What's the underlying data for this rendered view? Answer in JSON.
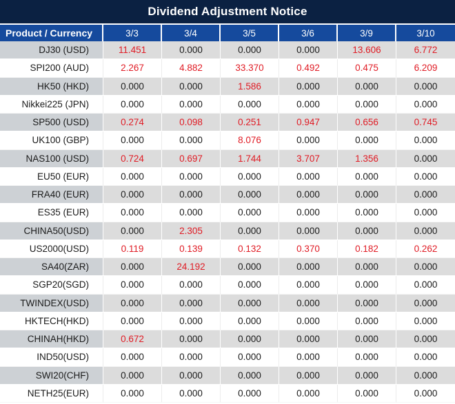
{
  "title": "Dividend Adjustment Notice",
  "colors": {
    "title_bg": "#0b2142",
    "header_bg": "#154a9d",
    "label_column_gray": "#cdd1d5",
    "row_gray": "#dcdcdc",
    "nonzero_value_red": "#e01b24",
    "text_black": "#1a1a1a"
  },
  "chart_data": {
    "type": "table",
    "title": "Dividend Adjustment Notice",
    "columns": [
      "Product / Currency",
      "3/3",
      "3/4",
      "3/5",
      "3/6",
      "3/9",
      "3/10"
    ],
    "rows": [
      {
        "product": "DJ30 (USD)",
        "values": [
          "11.451",
          "0.000",
          "0.000",
          "0.000",
          "13.606",
          "6.772"
        ]
      },
      {
        "product": "SPI200 (AUD)",
        "values": [
          "2.267",
          "4.882",
          "33.370",
          "0.492",
          "0.475",
          "6.209"
        ]
      },
      {
        "product": "HK50 (HKD)",
        "values": [
          "0.000",
          "0.000",
          "1.586",
          "0.000",
          "0.000",
          "0.000"
        ]
      },
      {
        "product": "Nikkei225 (JPN)",
        "values": [
          "0.000",
          "0.000",
          "0.000",
          "0.000",
          "0.000",
          "0.000"
        ]
      },
      {
        "product": "SP500 (USD)",
        "values": [
          "0.274",
          "0.098",
          "0.251",
          "0.947",
          "0.656",
          "0.745"
        ]
      },
      {
        "product": "UK100 (GBP)",
        "values": [
          "0.000",
          "0.000",
          "8.076",
          "0.000",
          "0.000",
          "0.000"
        ]
      },
      {
        "product": "NAS100 (USD)",
        "values": [
          "0.724",
          "0.697",
          "1.744",
          "3.707",
          "1.356",
          "0.000"
        ]
      },
      {
        "product": "EU50 (EUR)",
        "values": [
          "0.000",
          "0.000",
          "0.000",
          "0.000",
          "0.000",
          "0.000"
        ]
      },
      {
        "product": "FRA40 (EUR)",
        "values": [
          "0.000",
          "0.000",
          "0.000",
          "0.000",
          "0.000",
          "0.000"
        ]
      },
      {
        "product": "ES35 (EUR)",
        "values": [
          "0.000",
          "0.000",
          "0.000",
          "0.000",
          "0.000",
          "0.000"
        ]
      },
      {
        "product": "CHINA50(USD)",
        "values": [
          "0.000",
          "2.305",
          "0.000",
          "0.000",
          "0.000",
          "0.000"
        ]
      },
      {
        "product": "US2000(USD)",
        "values": [
          "0.119",
          "0.139",
          "0.132",
          "0.370",
          "0.182",
          "0.262"
        ]
      },
      {
        "product": "SA40(ZAR)",
        "values": [
          "0.000",
          "24.192",
          "0.000",
          "0.000",
          "0.000",
          "0.000"
        ]
      },
      {
        "product": "SGP20(SGD)",
        "values": [
          "0.000",
          "0.000",
          "0.000",
          "0.000",
          "0.000",
          "0.000"
        ]
      },
      {
        "product": "TWINDEX(USD)",
        "values": [
          "0.000",
          "0.000",
          "0.000",
          "0.000",
          "0.000",
          "0.000"
        ]
      },
      {
        "product": "HKTECH(HKD)",
        "values": [
          "0.000",
          "0.000",
          "0.000",
          "0.000",
          "0.000",
          "0.000"
        ]
      },
      {
        "product": "CHINAH(HKD)",
        "values": [
          "0.672",
          "0.000",
          "0.000",
          "0.000",
          "0.000",
          "0.000"
        ]
      },
      {
        "product": "IND50(USD)",
        "values": [
          "0.000",
          "0.000",
          "0.000",
          "0.000",
          "0.000",
          "0.000"
        ]
      },
      {
        "product": "SWI20(CHF)",
        "values": [
          "0.000",
          "0.000",
          "0.000",
          "0.000",
          "0.000",
          "0.000"
        ]
      },
      {
        "product": "NETH25(EUR)",
        "values": [
          "0.000",
          "0.000",
          "0.000",
          "0.000",
          "0.000",
          "0.000"
        ]
      }
    ]
  }
}
